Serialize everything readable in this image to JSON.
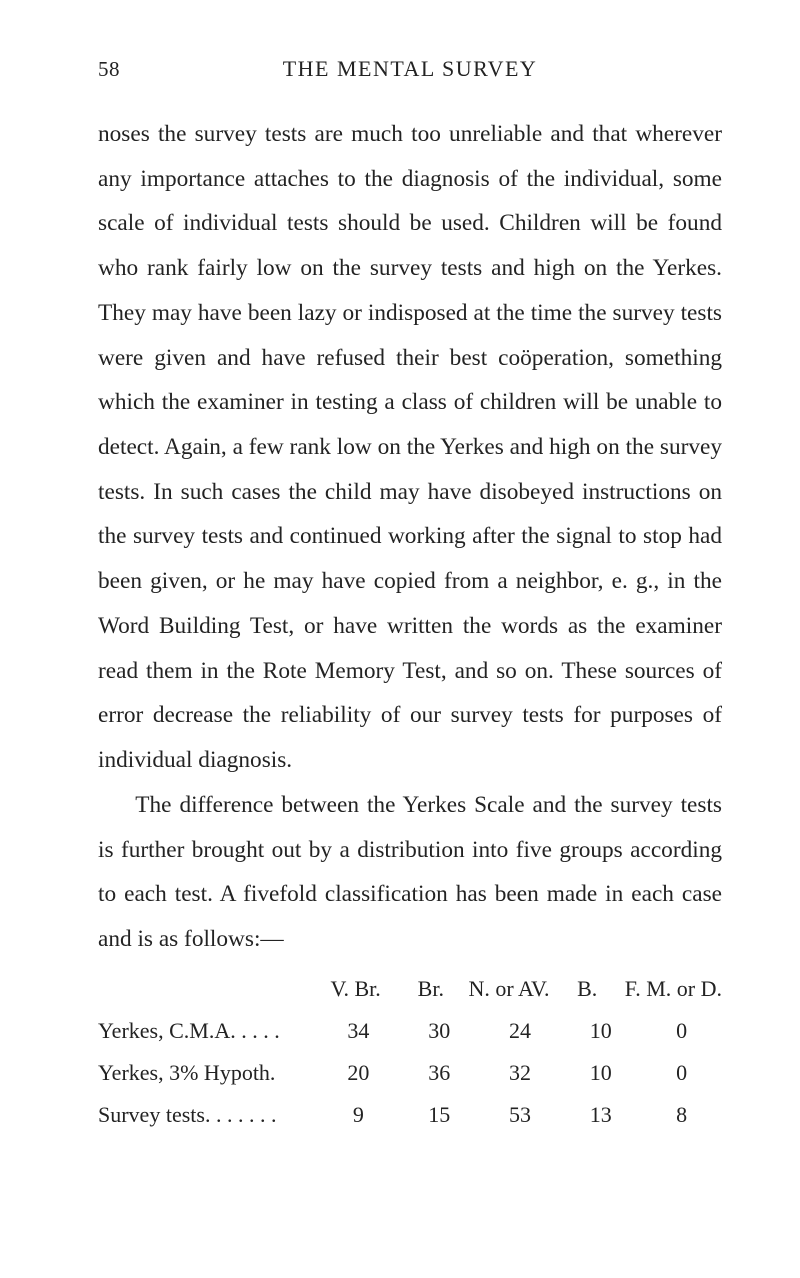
{
  "header": {
    "page_number": "58",
    "running_title": "THE MENTAL SURVEY"
  },
  "paragraphs": {
    "p1": "noses the survey tests are much too unreliable and that wherever any importance attaches to the diag­nosis of the individual, some scale of individual tests should be used. Children will be found who rank fairly low on the survey tests and high on the Yerkes. They may have been lazy or indisposed at the time the survey tests were given and have re­fused their best coöperation, something which the examiner in testing a class of children will be unable to detect. Again, a few rank low on the Yerkes and high on the survey tests. In such cases the child may have disobeyed instructions on the survey tests and continued working after the signal to stop had been given, or he may have copied from a neighbor, e. g., in the Word Building Test, or have written the words as the examiner read them in the Rote Memory Test, and so on. These sources of error decrease the reliability of our survey tests for pur­poses of individual diagnosis.",
    "p2": "The difference between the Yerkes Scale and the survey tests is further brought out by a distribu­tion into five groups according to each test. A five­fold classification has been made in each case and is as follows:—"
  },
  "table": {
    "headers": {
      "blank": "",
      "c1": "V. Br.",
      "c2": "Br.",
      "c3": "N. or AV.",
      "c4": "B.",
      "c5": "F. M. or D."
    },
    "rows": [
      {
        "label": "Yerkes, C.M.A. . . . .",
        "c1": "34",
        "c2": "30",
        "c3": "24",
        "c4": "10",
        "c5": "0"
      },
      {
        "label": "Yerkes, 3% Hypoth.",
        "c1": "20",
        "c2": "36",
        "c3": "32",
        "c4": "10",
        "c5": "0"
      },
      {
        "label": "Survey tests. . . . . . .",
        "c1": "9",
        "c2": "15",
        "c3": "53",
        "c4": "13",
        "c5": "8"
      }
    ]
  }
}
